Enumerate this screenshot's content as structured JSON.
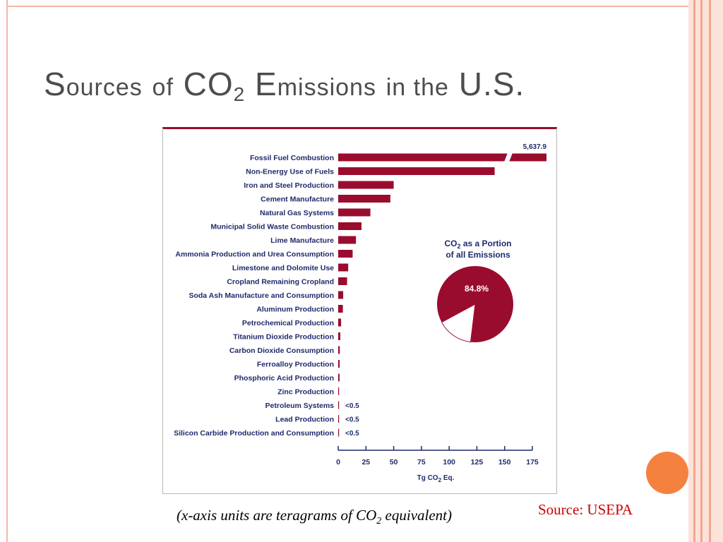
{
  "slide": {
    "title_word1_first": "S",
    "title_word1_rest": "ources",
    "title_of": "of",
    "title_co": "CO",
    "title_sub": "2",
    "title_word2_first": "E",
    "title_word2_rest": "missions",
    "title_in_the": "in the",
    "title_us": "U.S.",
    "caption_pre": "(x-axis units are teragrams of CO",
    "caption_sub": "2",
    "caption_post": " equivalent)",
    "source": "Source: USEPA"
  },
  "colors": {
    "bar": "#9a0c2e",
    "accent_orange": "#f5813f",
    "frame": "#f4b8a5"
  },
  "chart_data": {
    "type": "bar",
    "orientation": "horizontal",
    "categories": [
      "Fossil Fuel Combustion",
      "Non-Energy Use of Fuels",
      "Iron and Steel Production",
      "Cement Manufacture",
      "Natural Gas Systems",
      "Municipal Solid Waste Combustion",
      "Lime Manufacture",
      "Ammonia Production and Urea Consumption",
      "Limestone and Dolomite Use",
      "Cropland Remaining Cropland",
      "Soda Ash Manufacture and Consumption",
      "Aluminum Production",
      "Petrochemical Production",
      "Titanium Dioxide Production",
      "Carbon Dioxide Consumption",
      "Ferroalloy Production",
      "Phosphoric Acid Production",
      "Zinc Production",
      "Petroleum Systems",
      "Lead Production",
      "Silicon Carbide Production and Consumption"
    ],
    "values": [
      5637.9,
      141,
      50,
      47,
      29,
      21,
      16,
      13,
      9,
      8,
      4.5,
      4.2,
      2.6,
      1.9,
      1.4,
      1.3,
      1.2,
      0.5,
      0.3,
      0.3,
      0.2
    ],
    "axis_break": true,
    "data_labels": {
      "0": "5,637.9",
      "18": "<0.5",
      "19": "<0.5",
      "20": "<0.5"
    },
    "xlim": [
      0,
      175
    ],
    "xticks": [
      "0",
      "25",
      "50",
      "75",
      "100",
      "125",
      "150",
      "175"
    ],
    "xlabel_main": "Tg CO",
    "xlabel_sub": "2",
    "xlabel_post": " Eq.",
    "inset": {
      "type": "pie",
      "title_line1_pre": "CO",
      "title_line1_sub": "2",
      "title_line1_post": " as a Portion",
      "title_line2": "of all Emissions",
      "value_label": "84.8%",
      "value": 84.8
    }
  }
}
